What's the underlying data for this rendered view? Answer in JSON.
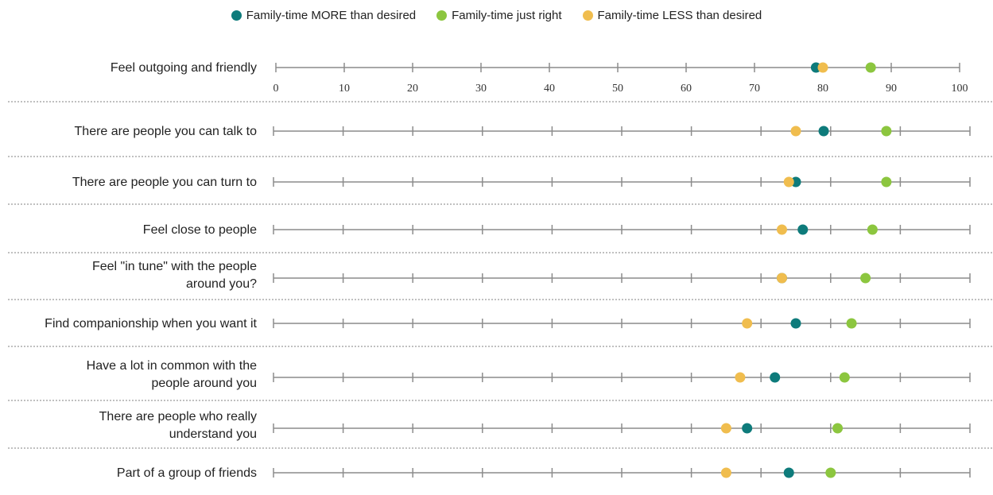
{
  "chart_data": {
    "type": "scatter",
    "xlim": [
      0,
      100
    ],
    "ticks": [
      0,
      10,
      20,
      30,
      40,
      50,
      60,
      70,
      80,
      90,
      100
    ],
    "legend_position": "top-center",
    "categories": [
      "Feel outgoing and friendly",
      "There are people you can talk to",
      "There are people you can turn to",
      "Feel close to people",
      "Feel \"in tune\" with the people around you?",
      "Find companionship when you want it",
      "Have a lot in common with the people around you",
      "There are people who really understand you",
      "Part of a group of friends"
    ],
    "series": [
      {
        "name": "Family-time MORE than desired",
        "color": "#0e7b7b",
        "values": [
          79,
          79,
          75,
          76,
          73,
          75,
          72,
          68,
          74
        ]
      },
      {
        "name": "Family-time just right",
        "color": "#8cc63f",
        "values": [
          87,
          88,
          88,
          86,
          85,
          83,
          82,
          81,
          80
        ]
      },
      {
        "name": "Family-time LESS than desired",
        "color": "#f0bd4e",
        "values": [
          80,
          75,
          74,
          73,
          73,
          68,
          67,
          65,
          65
        ]
      }
    ]
  }
}
